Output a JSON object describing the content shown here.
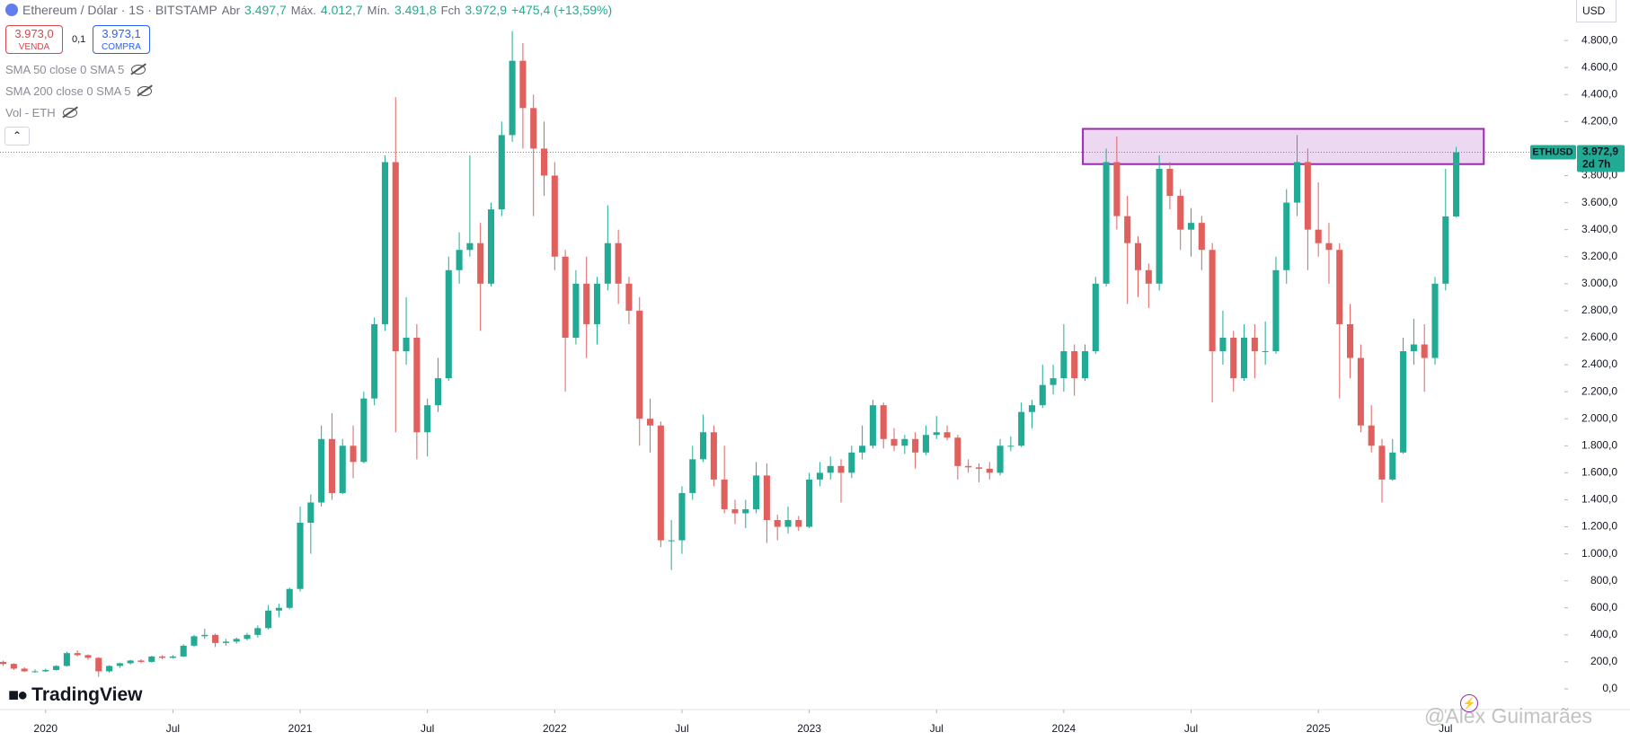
{
  "header": {
    "symbol": "Ethereum / Dólar · 1S · BITSTAMP",
    "ohlc": [
      {
        "label": "Abr",
        "value": "3.497,7"
      },
      {
        "label": "Máx.",
        "value": "4.012,7"
      },
      {
        "label": "Mín.",
        "value": "3.491,8"
      },
      {
        "label": "Fch",
        "value": "3.972,9"
      }
    ],
    "change": "+475,4 (+13,59%)"
  },
  "trade_panel": {
    "sell_price": "3.973,0",
    "sell_label": "VENDA",
    "spread": "0,1",
    "buy_price": "3.973,1",
    "buy_label": "COMPRA"
  },
  "indicators": [
    "SMA 50 close 0 SMA 5",
    "SMA 200 close 0 SMA 5",
    "Vol - ETH"
  ],
  "currency": "USD",
  "brand": "TradingView",
  "watermark": "@Alex Guimarães",
  "chart_data": {
    "type": "candlestick",
    "up_color": "#22ab94",
    "down_color": "#e0605e",
    "xlim": [
      -0.3,
      147.2
    ],
    "ylim": [
      -153,
      5100
    ],
    "grid": false,
    "xticks": [
      {
        "value": 4,
        "label": "2020"
      },
      {
        "value": 16,
        "label": "Jul"
      },
      {
        "value": 28,
        "label": "2021"
      },
      {
        "value": 40,
        "label": "Jul"
      },
      {
        "value": 52,
        "label": "2022"
      },
      {
        "value": 64,
        "label": "Jul"
      },
      {
        "value": 76,
        "label": "2023"
      },
      {
        "value": 88,
        "label": "Jul"
      },
      {
        "value": 100,
        "label": "2024"
      },
      {
        "value": 112,
        "label": "Jul"
      },
      {
        "value": 124,
        "label": "2025"
      },
      {
        "value": 136,
        "label": "Jul"
      }
    ],
    "yticks": [
      {
        "value": 0,
        "label": "0,0"
      },
      {
        "value": 200,
        "label": "200,0"
      },
      {
        "value": 400,
        "label": "400,0"
      },
      {
        "value": 600,
        "label": "600,0"
      },
      {
        "value": 800,
        "label": "800,0"
      },
      {
        "value": 1000,
        "label": "1.000,0"
      },
      {
        "value": 1200,
        "label": "1.200,0"
      },
      {
        "value": 1400,
        "label": "1.400,0"
      },
      {
        "value": 1600,
        "label": "1.600,0"
      },
      {
        "value": 1800,
        "label": "1.800,0"
      },
      {
        "value": 2000,
        "label": "2.000,0"
      },
      {
        "value": 2200,
        "label": "2.200,0"
      },
      {
        "value": 2400,
        "label": "2.400,0"
      },
      {
        "value": 2600,
        "label": "2.600,0"
      },
      {
        "value": 2800,
        "label": "2.800,0"
      },
      {
        "value": 3000,
        "label": "3.000,0"
      },
      {
        "value": 3200,
        "label": "3.200,0"
      },
      {
        "value": 3400,
        "label": "3.400,0"
      },
      {
        "value": 3600,
        "label": "3.600,0"
      },
      {
        "value": 3800,
        "label": "3.800,0"
      },
      {
        "value": 4200,
        "label": "4.200,0"
      },
      {
        "value": 4400,
        "label": "4.400,0"
      },
      {
        "value": 4600,
        "label": "4.600,0"
      },
      {
        "value": 4800,
        "label": "4.800,0"
      }
    ],
    "zone": {
      "x": [
        101.8,
        139.6
      ],
      "y": [
        3885,
        4146
      ],
      "color": "#9c27b0"
    },
    "last_price": {
      "symbol": "ETHUSD",
      "value": 3972.9,
      "label": "3.972,9",
      "countdown": "2d 7h",
      "color": "#22ab94"
    },
    "candles": [
      [
        200,
        210,
        170,
        185
      ],
      [
        185,
        190,
        140,
        150
      ],
      [
        150,
        160,
        125,
        130
      ],
      [
        130,
        145,
        120,
        130
      ],
      [
        130,
        150,
        125,
        140
      ],
      [
        140,
        175,
        135,
        170
      ],
      [
        170,
        275,
        165,
        265
      ],
      [
        265,
        285,
        240,
        250
      ],
      [
        250,
        255,
        215,
        230
      ],
      [
        230,
        235,
        90,
        130
      ],
      [
        130,
        175,
        120,
        170
      ],
      [
        170,
        195,
        155,
        190
      ],
      [
        190,
        215,
        180,
        210
      ],
      [
        210,
        220,
        190,
        200
      ],
      [
        200,
        245,
        195,
        240
      ],
      [
        240,
        250,
        220,
        230
      ],
      [
        230,
        250,
        225,
        240
      ],
      [
        240,
        330,
        235,
        320
      ],
      [
        320,
        400,
        310,
        390
      ],
      [
        390,
        445,
        370,
        400
      ],
      [
        400,
        410,
        310,
        340
      ],
      [
        340,
        370,
        320,
        350
      ],
      [
        350,
        380,
        335,
        370
      ],
      [
        370,
        415,
        360,
        400
      ],
      [
        400,
        470,
        380,
        450
      ],
      [
        450,
        620,
        440,
        580
      ],
      [
        580,
        630,
        530,
        600
      ],
      [
        600,
        750,
        590,
        740
      ],
      [
        740,
        1350,
        720,
        1230
      ],
      [
        1230,
        1440,
        1000,
        1380
      ],
      [
        1380,
        1950,
        1350,
        1850
      ],
      [
        1850,
        2040,
        1400,
        1450
      ],
      [
        1450,
        1850,
        1440,
        1800
      ],
      [
        1800,
        1950,
        1560,
        1680
      ],
      [
        1680,
        2200,
        1670,
        2150
      ],
      [
        2150,
        2750,
        2100,
        2700
      ],
      [
        2700,
        3950,
        2650,
        3900
      ],
      [
        3900,
        4380,
        1900,
        2500
      ],
      [
        2500,
        2900,
        2400,
        2600
      ],
      [
        2600,
        2700,
        1700,
        1900
      ],
      [
        1900,
        2150,
        1720,
        2100
      ],
      [
        2100,
        2450,
        2050,
        2300
      ],
      [
        2300,
        3200,
        2280,
        3100
      ],
      [
        3100,
        3380,
        3000,
        3250
      ],
      [
        3250,
        3950,
        3200,
        3300
      ],
      [
        3300,
        3450,
        2650,
        3000
      ],
      [
        3000,
        3600,
        2980,
        3550
      ],
      [
        3550,
        4200,
        3500,
        4100
      ],
      [
        4100,
        4870,
        4050,
        4650
      ],
      [
        4650,
        4780,
        4000,
        4300
      ],
      [
        4300,
        4400,
        3500,
        4000
      ],
      [
        4000,
        4200,
        3650,
        3800
      ],
      [
        3800,
        3900,
        3100,
        3200
      ],
      [
        3200,
        3250,
        2200,
        2600
      ],
      [
        2600,
        3100,
        2550,
        3000
      ],
      [
        3000,
        3200,
        2450,
        2700
      ],
      [
        2700,
        3050,
        2550,
        3000
      ],
      [
        3000,
        3580,
        2950,
        3300
      ],
      [
        3300,
        3400,
        2850,
        3000
      ],
      [
        3000,
        3050,
        2700,
        2800
      ],
      [
        2800,
        2900,
        1800,
        2000
      ],
      [
        2000,
        2150,
        1750,
        1950
      ],
      [
        1950,
        1980,
        1050,
        1100
      ],
      [
        1100,
        1250,
        880,
        1100
      ],
      [
        1100,
        1500,
        1000,
        1450
      ],
      [
        1450,
        1800,
        1400,
        1700
      ],
      [
        1700,
        2030,
        1680,
        1900
      ],
      [
        1900,
        1950,
        1500,
        1550
      ],
      [
        1550,
        1800,
        1300,
        1330
      ],
      [
        1330,
        1400,
        1220,
        1300
      ],
      [
        1300,
        1400,
        1190,
        1330
      ],
      [
        1330,
        1680,
        1300,
        1580
      ],
      [
        1580,
        1670,
        1080,
        1250
      ],
      [
        1250,
        1290,
        1100,
        1200
      ],
      [
        1200,
        1350,
        1150,
        1250
      ],
      [
        1250,
        1280,
        1170,
        1200
      ],
      [
        1200,
        1600,
        1190,
        1550
      ],
      [
        1550,
        1680,
        1500,
        1600
      ],
      [
        1600,
        1720,
        1550,
        1650
      ],
      [
        1650,
        1700,
        1380,
        1600
      ],
      [
        1600,
        1800,
        1560,
        1750
      ],
      [
        1750,
        1950,
        1700,
        1800
      ],
      [
        1800,
        2140,
        1780,
        2100
      ],
      [
        2100,
        2120,
        1780,
        1850
      ],
      [
        1850,
        1930,
        1760,
        1800
      ],
      [
        1800,
        1880,
        1740,
        1850
      ],
      [
        1850,
        1900,
        1630,
        1750
      ],
      [
        1750,
        1950,
        1730,
        1880
      ],
      [
        1880,
        2020,
        1850,
        1900
      ],
      [
        1900,
        1950,
        1840,
        1860
      ],
      [
        1860,
        1880,
        1550,
        1650
      ],
      [
        1650,
        1700,
        1600,
        1640
      ],
      [
        1640,
        1670,
        1530,
        1630
      ],
      [
        1630,
        1680,
        1550,
        1600
      ],
      [
        1600,
        1850,
        1580,
        1800
      ],
      [
        1800,
        1870,
        1760,
        1800
      ],
      [
        1800,
        2120,
        1790,
        2050
      ],
      [
        2050,
        2140,
        1930,
        2100
      ],
      [
        2100,
        2400,
        2080,
        2250
      ],
      [
        2250,
        2400,
        2180,
        2300
      ],
      [
        2300,
        2700,
        2200,
        2500
      ],
      [
        2500,
        2550,
        2170,
        2300
      ],
      [
        2300,
        2550,
        2280,
        2500
      ],
      [
        2500,
        3050,
        2480,
        3000
      ],
      [
        3000,
        4000,
        2980,
        3900
      ],
      [
        3900,
        4090,
        3400,
        3500
      ],
      [
        3500,
        3650,
        2850,
        3300
      ],
      [
        3300,
        3350,
        2900,
        3100
      ],
      [
        3100,
        3150,
        2820,
        3000
      ],
      [
        3000,
        3950,
        2950,
        3850
      ],
      [
        3850,
        3900,
        3550,
        3650
      ],
      [
        3650,
        3700,
        3250,
        3400
      ],
      [
        3400,
        3560,
        3200,
        3450
      ],
      [
        3450,
        3500,
        3100,
        3250
      ],
      [
        3250,
        3300,
        2120,
        2500
      ],
      [
        2500,
        2800,
        2400,
        2600
      ],
      [
        2600,
        2650,
        2200,
        2300
      ],
      [
        2300,
        2700,
        2280,
        2600
      ],
      [
        2600,
        2700,
        2300,
        2500
      ],
      [
        2500,
        2720,
        2400,
        2500
      ],
      [
        2500,
        3200,
        2480,
        3100
      ],
      [
        3100,
        3700,
        3000,
        3600
      ],
      [
        3600,
        4100,
        3500,
        3900
      ],
      [
        3900,
        4000,
        3100,
        3400
      ],
      [
        3400,
        3750,
        3200,
        3300
      ],
      [
        3300,
        3450,
        3000,
        3250
      ],
      [
        3250,
        3300,
        2150,
        2700
      ],
      [
        2700,
        2850,
        2300,
        2450
      ],
      [
        2450,
        2550,
        1900,
        1950
      ],
      [
        1950,
        2100,
        1750,
        1800
      ],
      [
        1800,
        1850,
        1380,
        1550
      ],
      [
        1550,
        1850,
        1540,
        1750
      ],
      [
        1750,
        2600,
        1740,
        2500
      ],
      [
        2500,
        2740,
        2400,
        2550
      ],
      [
        2550,
        2700,
        2200,
        2450
      ],
      [
        2450,
        3050,
        2400,
        3000
      ],
      [
        3000,
        3850,
        2950,
        3497.7
      ],
      [
        3497.7,
        4012.7,
        3491.8,
        3972.9
      ]
    ]
  }
}
